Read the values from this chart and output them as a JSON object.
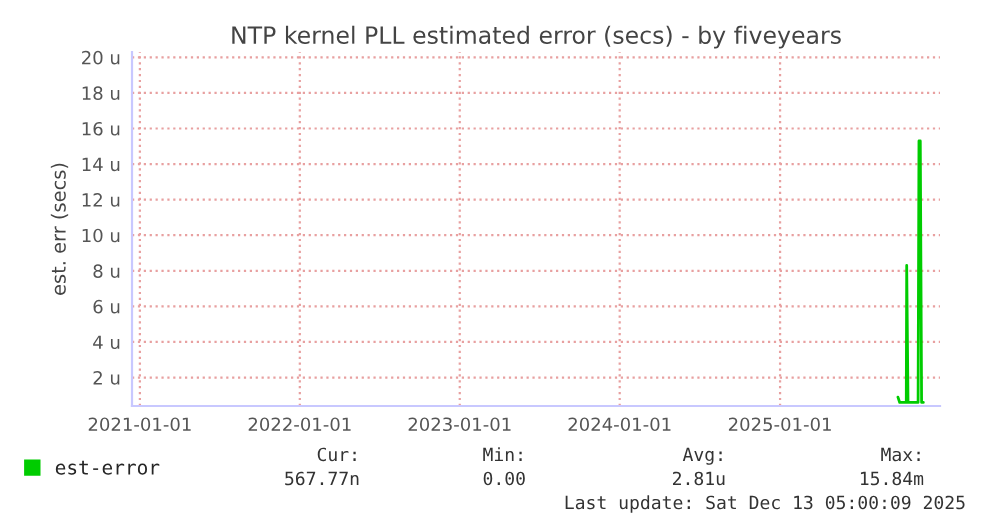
{
  "chart_data": {
    "type": "line",
    "title": "NTP kernel PLL estimated error (secs) - by fiveyears",
    "ylabel": "est. err (secs)",
    "series": [
      {
        "name": "est-error",
        "color": "#00cc00",
        "x": [
          "2025-09-27",
          "2025-10-01",
          "2025-10-08",
          "2025-10-16",
          "2025-10-17",
          "2025-10-20",
          "2025-10-24",
          "2025-11-12",
          "2025-11-14",
          "2025-11-17",
          "2025-11-20",
          "2025-11-24"
        ],
        "values": [
          0.9,
          0.6,
          0.6,
          0.6,
          8.3,
          0.6,
          0.6,
          0.6,
          15.3,
          15.3,
          0.6,
          0.6
        ]
      }
    ],
    "xlim": [
      "2020-12-14",
      "2026-01-01"
    ],
    "xticks": [
      {
        "value": "2021-01-01",
        "label": "2021-01-01"
      },
      {
        "value": "2022-01-01",
        "label": "2022-01-01"
      },
      {
        "value": "2023-01-01",
        "label": "2023-01-01"
      },
      {
        "value": "2024-01-01",
        "label": "2024-01-01"
      },
      {
        "value": "2025-01-01",
        "label": "2025-01-01"
      }
    ],
    "ylim": [
      0.4,
      20.3
    ],
    "yticks": [
      {
        "value": 2,
        "label": "2 u"
      },
      {
        "value": 4,
        "label": "4 u"
      },
      {
        "value": 6,
        "label": "6 u"
      },
      {
        "value": 8,
        "label": "8 u"
      },
      {
        "value": 10,
        "label": "10 u"
      },
      {
        "value": 12,
        "label": "12 u"
      },
      {
        "value": 14,
        "label": "14 u"
      },
      {
        "value": 16,
        "label": "16 u"
      },
      {
        "value": 18,
        "label": "18 u"
      },
      {
        "value": 20,
        "label": "20 u"
      }
    ],
    "grid": true,
    "legend": "bottom left",
    "annotations": [
      "Cur:",
      "567.77n",
      "Min:",
      "0.00",
      "Avg:",
      "2.81u",
      "Max:",
      "15.84m",
      "Last update: Sat Dec 13 05:00:09 2025"
    ]
  }
}
